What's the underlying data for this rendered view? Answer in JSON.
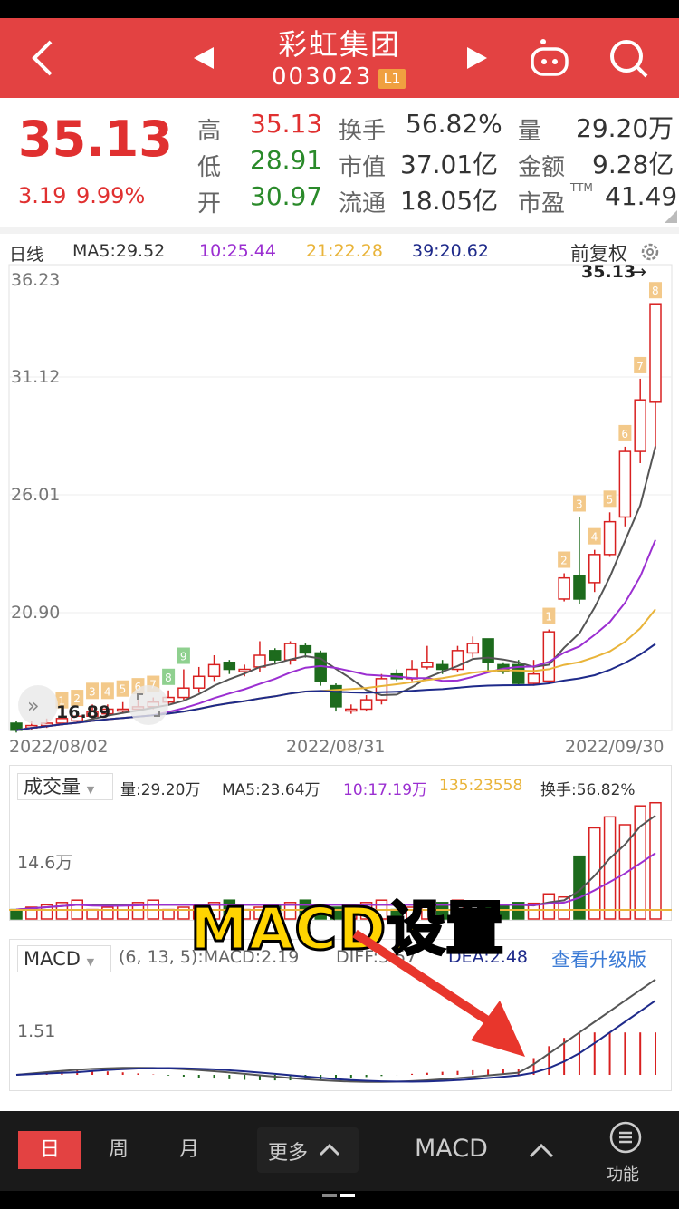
{
  "header": {
    "stock_name": "彩虹集团",
    "stock_code": "003023",
    "level_badge": "L1",
    "back_icon": "chevron-left-icon",
    "prev_icon": "triangle-left-icon",
    "next_icon": "triangle-right-icon",
    "robot_icon": "robot-icon",
    "search_icon": "search-icon",
    "bg_color": "#e34242"
  },
  "quote": {
    "price": "35.13",
    "change": "3.19",
    "change_pct": "9.99%",
    "high_label": "高",
    "high": "35.13",
    "low_label": "低",
    "low": "28.91",
    "open_label": "开",
    "open": "30.97",
    "turnover_label": "换手",
    "turnover": "56.82%",
    "mktcap_label": "市值",
    "mktcap": "37.01亿",
    "float_label": "流通",
    "float": "18.05亿",
    "vol_label": "量",
    "vol": "29.20万",
    "amount_label": "金额",
    "amount": "9.28亿",
    "pe_label": "市盈",
    "pe_sup": "TTM",
    "pe": "41.49"
  },
  "kline": {
    "period": "日线",
    "ma5": "MA5:29.52",
    "ma10": "10:25.44",
    "ma21": "21:22.28",
    "ma39": "39:20.62",
    "adjust": "前复权",
    "gear_icon": "gear-icon",
    "last_price_tag": "35.13",
    "low_tag": "16.89",
    "ylabels": [
      "36.23",
      "31.12",
      "26.01",
      "20.90"
    ],
    "dates": [
      "2022/08/02",
      "2022/08/31",
      "2022/09/30"
    ],
    "colors": {
      "ma5": "#555555",
      "ma10": "#9b2fd1",
      "ma21": "#e9b43a",
      "ma39": "#1e2a8a",
      "up": "#d82020",
      "down": "#1d6b1d"
    },
    "countdown": [
      "1",
      "2",
      "3",
      "4",
      "5",
      "6",
      "7",
      "8",
      "9"
    ],
    "up_count": [
      "1",
      "2",
      "3",
      "4",
      "5",
      "6",
      "7",
      "8"
    ]
  },
  "volume": {
    "selector": "成交量",
    "vol": "量:29.20万",
    "ma5": "MA5:23.64万",
    "ma10": "10:17.19万",
    "ma135": "135:23558",
    "turnover": "换手:56.82%",
    "ylabel": "14.6万"
  },
  "macd": {
    "selector": "MACD",
    "params": "(6, 13, 5):MACD:2.19",
    "diff": "DIFF:3.57",
    "dea": "DEA:2.48",
    "upgrade_link": "查看升级版",
    "ylabel": "1.51"
  },
  "overlay": {
    "caption": "MACD设置"
  },
  "chart_data": {
    "type": "line",
    "title": "",
    "x": [
      "2022/08/02",
      "2022/08/31",
      "2022/09/30"
    ],
    "ylim": [
      16.89,
      36.23
    ],
    "series": [
      {
        "name": "MA5",
        "values": [
          17.3,
          19.8,
          29.52
        ]
      },
      {
        "name": "10",
        "values": [
          17.2,
          19.4,
          25.44
        ]
      },
      {
        "name": "21",
        "values": [
          17.0,
          18.8,
          22.28
        ]
      },
      {
        "name": "39",
        "values": [
          16.9,
          18.1,
          20.62
        ]
      }
    ]
  },
  "bottom_nav": {
    "day": "日",
    "week": "周",
    "month": "月",
    "more": "更多",
    "indicator": "MACD",
    "func": "功能",
    "chevron_icon": "chevron-up-icon",
    "menu_icon": "menu-icon"
  }
}
